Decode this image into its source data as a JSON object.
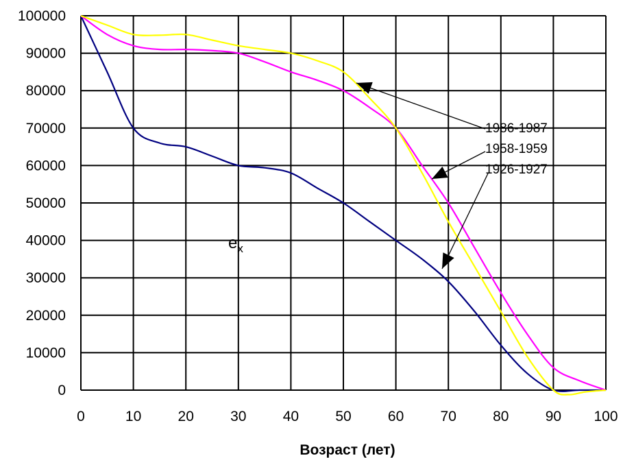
{
  "chart_data": {
    "type": "line",
    "xlabel": "Возраст (лет)",
    "ylabel": "",
    "xlim": [
      0,
      100
    ],
    "ylim": [
      0,
      100000
    ],
    "x_ticks": [
      0,
      10,
      20,
      30,
      40,
      50,
      60,
      70,
      80,
      90,
      100
    ],
    "y_ticks": [
      0,
      10000,
      20000,
      30000,
      40000,
      50000,
      60000,
      70000,
      80000,
      90000,
      100000
    ],
    "grid": true,
    "annotation": {
      "main": "e",
      "sub": "x"
    },
    "series": [
      {
        "name": "1986-1987",
        "color": "#ffff00",
        "x": [
          0,
          5,
          10,
          15,
          20,
          25,
          30,
          35,
          40,
          45,
          50,
          55,
          60,
          65,
          70,
          75,
          80,
          85,
          90,
          93,
          96,
          100
        ],
        "y": [
          100000,
          97500,
          95000,
          94800,
          95000,
          93500,
          92000,
          91000,
          90000,
          88000,
          85000,
          78000,
          70000,
          58000,
          45000,
          33000,
          21000,
          9000,
          0,
          -1200,
          -500,
          0
        ]
      },
      {
        "name": "1958-1959",
        "color": "#ff00ff",
        "x": [
          0,
          5,
          10,
          15,
          20,
          25,
          30,
          35,
          40,
          45,
          50,
          55,
          60,
          65,
          70,
          75,
          80,
          85,
          90,
          95,
          100
        ],
        "y": [
          100000,
          95000,
          92000,
          91000,
          91000,
          90700,
          90000,
          87700,
          85000,
          82800,
          80000,
          75500,
          70000,
          60000,
          50000,
          38000,
          26000,
          15000,
          6000,
          2500,
          0
        ]
      },
      {
        "name": "1926-1927",
        "color": "#000080",
        "x": [
          0,
          5,
          10,
          15,
          20,
          25,
          30,
          35,
          40,
          45,
          50,
          55,
          60,
          65,
          70,
          75,
          80,
          85,
          90,
          95,
          100
        ],
        "y": [
          100000,
          85000,
          70000,
          66000,
          65000,
          62500,
          60000,
          59400,
          58000,
          54000,
          50000,
          45000,
          40000,
          35000,
          29000,
          21000,
          12000,
          4500,
          0,
          0,
          0
        ]
      }
    ]
  },
  "colors": {
    "grid": "#000000",
    "axis": "#000000",
    "background": "#ffffff"
  }
}
